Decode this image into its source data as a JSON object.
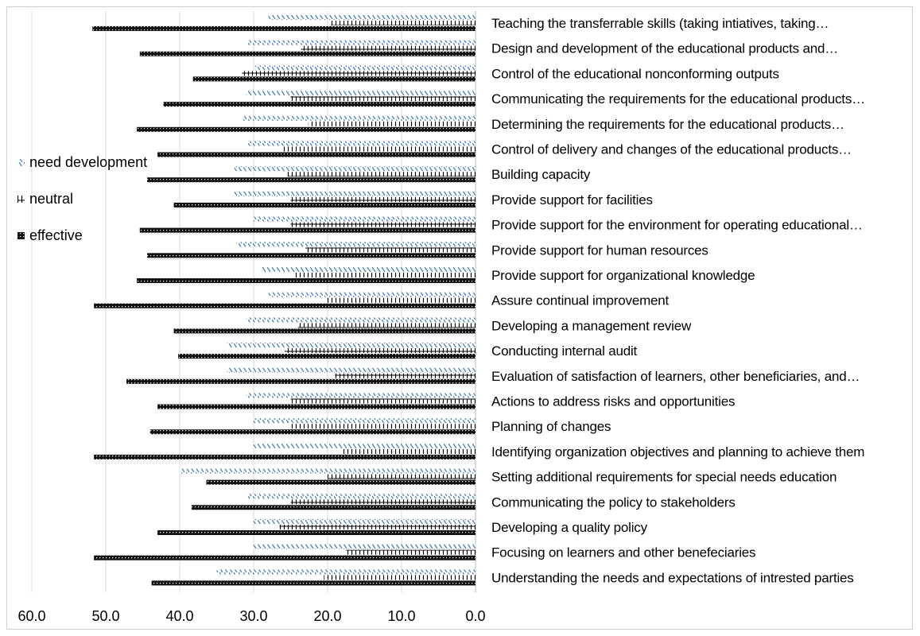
{
  "chart_data": {
    "type": "bar",
    "orientation": "horizontal",
    "x_axis_reversed": true,
    "xlim": [
      0,
      60
    ],
    "x_ticks": [
      "60.0",
      "50.0",
      "40.0",
      "30.0",
      "20.0",
      "10.0",
      "0.0"
    ],
    "grid": true,
    "legend_position": "left",
    "title": "",
    "xlabel": "",
    "ylabel": "",
    "categories": [
      "Teaching the transferrable skills (taking intiatives, taking…",
      "Design and development of the educational products and…",
      "Control of the educational nonconforming outputs",
      "Communicating the requirements for the educational products…",
      "Determining the requirements for the educational products…",
      "Control of delivery and changes of the educational products…",
      "Building capacity",
      "Provide support for facilities",
      "Provide support for the environment for operating educational…",
      "Provide support for human resources",
      "Provide support for organizational knowledge",
      "Assure continual improvement",
      "Developing a management review",
      "Conducting internal audit",
      "Evaluation of satisfaction of learners, other beneficiaries, and…",
      "Actions to address risks and opportunities",
      "Planning of changes",
      "Identifying organization objectives and planning to achieve them",
      "Setting additional requirements for special needs education",
      "Communicating the policy to stakeholders",
      "Developing a quality policy",
      "Focusing on learners and other benefeciaries",
      "Understanding the needs and expectations of intrested parties"
    ],
    "series": [
      {
        "name": "need development",
        "color": "#4a7ebb",
        "pattern": "diagonal-dashes",
        "values": [
          28.0,
          30.8,
          29.8,
          31.0,
          31.6,
          30.8,
          32.6,
          32.6,
          30.0,
          32.3,
          29.0,
          28.0,
          31.0,
          33.6,
          33.6,
          31.0,
          30.0,
          30.0,
          40.0,
          30.8,
          30.0,
          30.0,
          35.0
        ]
      },
      {
        "name": "neutral",
        "color": "#000000",
        "pattern": "vertical-ticks",
        "values": [
          19.6,
          23.6,
          31.6,
          25.0,
          22.6,
          26.0,
          25.4,
          25.0,
          25.0,
          23.0,
          24.5,
          20.0,
          24.0,
          25.8,
          19.0,
          25.0,
          25.0,
          18.0,
          20.0,
          25.0,
          26.5,
          17.5,
          20.5
        ]
      },
      {
        "name": "effective",
        "color": "#000000",
        "pattern": "dotted-block",
        "values": [
          51.8,
          45.4,
          38.2,
          42.2,
          45.8,
          43.0,
          44.4,
          40.8,
          45.4,
          44.4,
          45.8,
          51.6,
          40.8,
          40.2,
          47.2,
          43.0,
          44.0,
          51.6,
          36.4,
          38.4,
          43.0,
          51.6,
          43.8
        ]
      }
    ]
  }
}
